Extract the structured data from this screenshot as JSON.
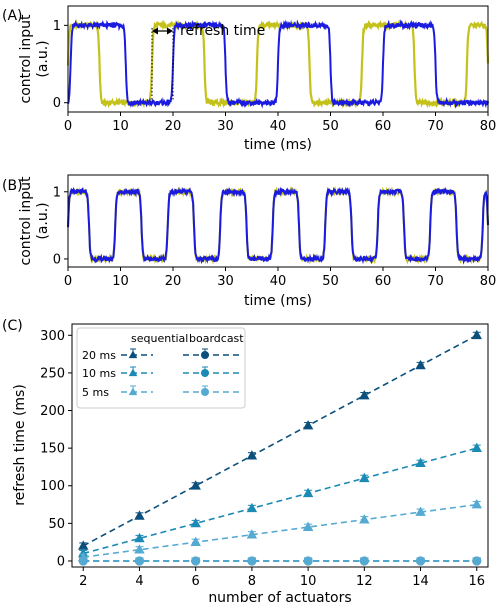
{
  "panel_labels": {
    "a": "(A)",
    "b": "(B)",
    "c": "(C)"
  },
  "colors": {
    "sequential_signal": "#c4c21a",
    "broadcast_signal": "#1a1ae0",
    "c_20ms": "#0b4f7c",
    "c_10ms": "#1b8ab4",
    "c_5ms": "#55aad2"
  },
  "chart_data": [
    {
      "type": "line",
      "id": "A",
      "xlabel": "time (ms)",
      "ylabel_lines": [
        "control input",
        "(a.u.)"
      ],
      "xlim": [
        0,
        80
      ],
      "ylim": [
        -0.12,
        1.25
      ],
      "xticks": [
        0,
        10,
        20,
        30,
        40,
        50,
        60,
        70,
        80
      ],
      "yticks": [
        0,
        1
      ],
      "annotation": {
        "text": "refresh time",
        "x_start": 16,
        "x_end": 20
      },
      "series": [
        {
          "color_key": "sequential_signal",
          "segments": [
            [
              0,
              6,
              1
            ],
            [
              16,
              26,
              1
            ],
            [
              36,
              46,
              1
            ],
            [
              56,
              66,
              1
            ],
            [
              76,
              80,
              1
            ]
          ],
          "low": 0,
          "high": 1
        },
        {
          "color_key": "broadcast_signal",
          "segments": [
            [
              0.5,
              11,
              1
            ],
            [
              20,
              30,
              1
            ],
            [
              40,
              50,
              1
            ],
            [
              60,
              70,
              1
            ]
          ],
          "low": 0,
          "high": 1
        }
      ]
    },
    {
      "type": "line",
      "id": "B",
      "xlabel": "time (ms)",
      "ylabel_lines": [
        "control input",
        "(a.u.)"
      ],
      "xlim": [
        0,
        80
      ],
      "ylim": [
        -0.12,
        1.25
      ],
      "xticks": [
        0,
        10,
        20,
        30,
        40,
        50,
        60,
        70,
        80
      ],
      "yticks": [
        0,
        1
      ],
      "series": [
        {
          "color_key": "sequential_signal",
          "segments": [
            [
              0,
              4,
              1
            ],
            [
              9,
              14,
              1
            ],
            [
              19,
              24,
              1
            ],
            [
              29,
              34,
              1
            ],
            [
              39,
              44,
              1
            ],
            [
              49,
              54,
              1
            ],
            [
              59,
              64,
              1
            ],
            [
              69,
              74,
              1
            ],
            [
              79,
              80,
              1
            ]
          ],
          "low": 0,
          "high": 1
        },
        {
          "color_key": "broadcast_signal",
          "segments": [
            [
              0,
              4,
              1
            ],
            [
              9,
              14,
              1
            ],
            [
              19,
              24,
              1
            ],
            [
              29,
              34,
              1
            ],
            [
              39,
              44,
              1
            ],
            [
              49,
              54,
              1
            ],
            [
              59,
              64,
              1
            ],
            [
              69,
              74,
              1
            ],
            [
              79,
              80,
              1
            ]
          ],
          "low": 0,
          "high": 1
        }
      ]
    },
    {
      "type": "line",
      "id": "C",
      "xlabel": "number of actuators",
      "ylabel": "refresh time (ms)",
      "xlim": [
        1.6,
        16.4
      ],
      "ylim": [
        -8,
        315
      ],
      "xticks": [
        2,
        4,
        6,
        8,
        10,
        12,
        14,
        16
      ],
      "yticks": [
        0,
        50,
        100,
        150,
        200,
        250,
        300
      ],
      "x": [
        2,
        4,
        6,
        8,
        10,
        12,
        14,
        16
      ],
      "legend": {
        "col_titles": [
          "sequential",
          "boardcast"
        ],
        "rows": [
          "20 ms",
          "10 ms",
          "5 ms"
        ],
        "placement": "top-left"
      },
      "series": [
        {
          "row": "20 ms",
          "mode": "sequential",
          "marker": "triangle",
          "color_key": "c_20ms",
          "values": [
            20,
            60,
            100,
            140,
            180,
            220,
            260,
            300
          ]
        },
        {
          "row": "10 ms",
          "mode": "sequential",
          "marker": "triangle",
          "color_key": "c_10ms",
          "values": [
            10,
            30,
            50,
            70,
            90,
            110,
            130,
            150
          ]
        },
        {
          "row": "5 ms",
          "mode": "sequential",
          "marker": "triangle",
          "color_key": "c_5ms",
          "values": [
            5,
            15,
            25,
            35,
            45,
            55,
            65,
            75
          ]
        },
        {
          "row": "20 ms",
          "mode": "boardcast",
          "marker": "circle",
          "color_key": "c_20ms",
          "values": [
            0,
            0,
            0,
            0,
            0,
            0,
            0,
            0
          ]
        },
        {
          "row": "10 ms",
          "mode": "boardcast",
          "marker": "circle",
          "color_key": "c_10ms",
          "values": [
            0,
            0,
            0,
            0,
            0,
            0,
            0,
            0
          ]
        },
        {
          "row": "5 ms",
          "mode": "boardcast",
          "marker": "circle",
          "color_key": "c_5ms",
          "values": [
            0,
            0,
            0,
            0,
            0,
            0,
            0,
            0
          ]
        }
      ]
    }
  ]
}
